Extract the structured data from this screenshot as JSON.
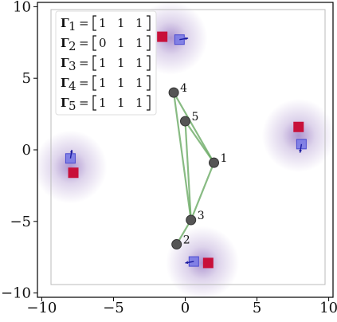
{
  "chart_data": {
    "type": "scatter",
    "xlim": [
      -10.3,
      10.3
    ],
    "ylim": [
      -10.3,
      10.3
    ],
    "xticks": [
      -10,
      -5,
      0,
      5,
      10
    ],
    "yticks": [
      -10,
      -5,
      0,
      5,
      10
    ],
    "xtick_labels": [
      "−10",
      "−5",
      "0",
      "5",
      "10"
    ],
    "ytick_labels": [
      "−10",
      "−5",
      "0",
      "5",
      "10"
    ],
    "grid": false,
    "legend_position": "top-left",
    "colors": {
      "node": "#555555",
      "edge": "#6aaa64",
      "red_square": "#c8103a",
      "blue_square": "#7a7ae6",
      "arrow": "#1a1aa0",
      "glow": "#6a3ea8"
    },
    "legend_entries": [
      {
        "symbol": "Γ",
        "index": "1",
        "vector": [
          "1",
          "1",
          "1"
        ]
      },
      {
        "symbol": "Γ",
        "index": "2",
        "vector": [
          "0",
          "1",
          "1"
        ]
      },
      {
        "symbol": "Γ",
        "index": "3",
        "vector": [
          "1",
          "1",
          "1"
        ]
      },
      {
        "symbol": "Γ",
        "index": "4",
        "vector": [
          "1",
          "1",
          "1"
        ]
      },
      {
        "symbol": "Γ",
        "index": "5",
        "vector": [
          "1",
          "1",
          "1"
        ]
      }
    ],
    "nodes": [
      {
        "label": "1",
        "x": 2.0,
        "y": -0.9
      },
      {
        "label": "2",
        "x": -0.6,
        "y": -6.6
      },
      {
        "label": "3",
        "x": 0.4,
        "y": -4.9
      },
      {
        "label": "4",
        "x": -0.8,
        "y": 4.0
      },
      {
        "label": "5",
        "x": 0.0,
        "y": 2.0
      }
    ],
    "edges": [
      [
        0,
        2
      ],
      [
        0,
        3
      ],
      [
        0,
        4
      ],
      [
        1,
        2
      ],
      [
        2,
        3
      ],
      [
        2,
        4
      ]
    ],
    "glow_centers": [
      {
        "x": -1.0,
        "y": 7.8
      },
      {
        "x": 7.9,
        "y": 1.0
      },
      {
        "x": -8.0,
        "y": -1.2
      },
      {
        "x": 1.2,
        "y": -7.9
      }
    ],
    "red_squares": [
      {
        "x": -1.6,
        "y": 7.9
      },
      {
        "x": 7.9,
        "y": 1.6
      },
      {
        "x": -7.8,
        "y": -1.6
      },
      {
        "x": 1.6,
        "y": -7.9
      }
    ],
    "blue_squares": [
      {
        "x": -0.4,
        "y": 7.7
      },
      {
        "x": 8.1,
        "y": 0.4
      },
      {
        "x": -8.0,
        "y": -0.6
      },
      {
        "x": 0.6,
        "y": -7.8
      }
    ],
    "arrows": [
      {
        "x": -0.4,
        "y": 7.7,
        "dx": 0.6,
        "dy": 0.1
      },
      {
        "x": 8.1,
        "y": 0.4,
        "dx": -0.1,
        "dy": -0.6
      },
      {
        "x": -8.0,
        "y": -0.6,
        "dx": 0.1,
        "dy": 0.6
      },
      {
        "x": 0.6,
        "y": -7.8,
        "dx": -0.6,
        "dy": -0.1
      }
    ]
  }
}
